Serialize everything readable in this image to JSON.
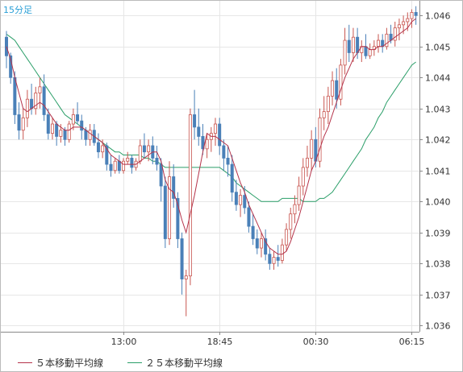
{
  "timeframe_label": "15分足",
  "legend": {
    "ma5_label": "５本移動平均線",
    "ma25_label": "２５本移動平均線"
  },
  "colors": {
    "up": "#c8554f",
    "down": "#4a80b8",
    "ma5": "#b5334a",
    "ma25": "#2a9e68",
    "grid": "#e6e6e6",
    "axis": "#888888"
  },
  "chart_data": {
    "type": "candlestick",
    "y_ticks": [
      "1.046",
      "1.045",
      "1.044",
      "1.043",
      "1.042",
      "1.041",
      "1.040",
      "1.039",
      "1.038",
      "1.037",
      "1.036"
    ],
    "y_tick_values": [
      1.046,
      1.045,
      1.044,
      1.043,
      1.042,
      1.041,
      1.04,
      1.039,
      1.038,
      1.037,
      1.036
    ],
    "ylim": [
      1.0358,
      1.0465
    ],
    "x_ticks": [
      {
        "label": "13:00",
        "index": 28
      },
      {
        "label": "18:45",
        "index": 51
      },
      {
        "label": "00:30",
        "index": 74
      },
      {
        "label": "06:15",
        "index": 97
      }
    ],
    "n_bars": 99,
    "ohlc": [
      [
        1.0453,
        1.0455,
        1.0443,
        1.0447
      ],
      [
        1.0447,
        1.0448,
        1.0438,
        1.044
      ],
      [
        1.044,
        1.0442,
        1.0425,
        1.0428
      ],
      [
        1.0428,
        1.0432,
        1.042,
        1.0423
      ],
      [
        1.0423,
        1.043,
        1.042,
        1.0427
      ],
      [
        1.0427,
        1.0436,
        1.0424,
        1.0433
      ],
      [
        1.0433,
        1.0438,
        1.0428,
        1.043
      ],
      [
        1.043,
        1.0437,
        1.0428,
        1.0435
      ],
      [
        1.0435,
        1.044,
        1.043,
        1.0437
      ],
      [
        1.0437,
        1.0441,
        1.0426,
        1.0428
      ],
      [
        1.0428,
        1.043,
        1.042,
        1.0422
      ],
      [
        1.0422,
        1.0427,
        1.042,
        1.0425
      ],
      [
        1.0425,
        1.0426,
        1.0418,
        1.0421
      ],
      [
        1.0421,
        1.0425,
        1.0419,
        1.0423
      ],
      [
        1.0423,
        1.0424,
        1.0418,
        1.042
      ],
      [
        1.042,
        1.0426,
        1.0419,
        1.0425
      ],
      [
        1.0425,
        1.043,
        1.0423,
        1.0428
      ],
      [
        1.0428,
        1.0432,
        1.0425,
        1.0426
      ],
      [
        1.0426,
        1.0428,
        1.042,
        1.0423
      ],
      [
        1.0423,
        1.0424,
        1.0418,
        1.042
      ],
      [
        1.042,
        1.0425,
        1.0418,
        1.0423
      ],
      [
        1.0423,
        1.0425,
        1.0418,
        1.0419
      ],
      [
        1.0419,
        1.0422,
        1.0414,
        1.0416
      ],
      [
        1.0416,
        1.042,
        1.0414,
        1.0418
      ],
      [
        1.0418,
        1.0419,
        1.041,
        1.0412
      ],
      [
        1.0412,
        1.0415,
        1.0408,
        1.041
      ],
      [
        1.041,
        1.0414,
        1.0409,
        1.0413
      ],
      [
        1.0413,
        1.0415,
        1.0409,
        1.041
      ],
      [
        1.041,
        1.0414,
        1.0409,
        1.0413
      ],
      [
        1.0413,
        1.0416,
        1.0412,
        1.0414
      ],
      [
        1.0414,
        1.0415,
        1.0409,
        1.0411
      ],
      [
        1.0411,
        1.0414,
        1.041,
        1.0413
      ],
      [
        1.0413,
        1.042,
        1.0412,
        1.0418
      ],
      [
        1.0418,
        1.0422,
        1.0414,
        1.0416
      ],
      [
        1.0416,
        1.042,
        1.0413,
        1.0418
      ],
      [
        1.0418,
        1.0421,
        1.0412,
        1.0414
      ],
      [
        1.0414,
        1.0418,
        1.041,
        1.0412
      ],
      [
        1.0412,
        1.0414,
        1.04,
        1.0405
      ],
      [
        1.0405,
        1.0408,
        1.0385,
        1.0388
      ],
      [
        1.0388,
        1.0413,
        1.0386,
        1.0408
      ],
      [
        1.0408,
        1.0412,
        1.0398,
        1.0401
      ],
      [
        1.0401,
        1.0403,
        1.0385,
        1.0388
      ],
      [
        1.0388,
        1.039,
        1.037,
        1.0375
      ],
      [
        1.0375,
        1.0378,
        1.0363,
        1.0376
      ],
      [
        1.0376,
        1.043,
        1.0373,
        1.0428
      ],
      [
        1.0428,
        1.0436,
        1.042,
        1.0424
      ],
      [
        1.0424,
        1.043,
        1.0418,
        1.0421
      ],
      [
        1.0421,
        1.0425,
        1.0415,
        1.0417
      ],
      [
        1.0417,
        1.0422,
        1.0414,
        1.042
      ],
      [
        1.042,
        1.0424,
        1.0416,
        1.0422
      ],
      [
        1.0422,
        1.0427,
        1.0418,
        1.0425
      ],
      [
        1.0425,
        1.0427,
        1.0415,
        1.0418
      ],
      [
        1.0418,
        1.042,
        1.041,
        1.0414
      ],
      [
        1.0414,
        1.0418,
        1.0408,
        1.0412
      ],
      [
        1.0412,
        1.0415,
        1.04,
        1.0403
      ],
      [
        1.0403,
        1.0407,
        1.0397,
        1.0399
      ],
      [
        1.0399,
        1.0404,
        1.0395,
        1.0402
      ],
      [
        1.0402,
        1.0405,
        1.0396,
        1.0398
      ],
      [
        1.0398,
        1.04,
        1.039,
        1.0392
      ],
      [
        1.0392,
        1.0396,
        1.0386,
        1.0388
      ],
      [
        1.0388,
        1.0391,
        1.0383,
        1.0385
      ],
      [
        1.0385,
        1.039,
        1.0382,
        1.0388
      ],
      [
        1.0388,
        1.0391,
        1.0381,
        1.0383
      ],
      [
        1.0383,
        1.0385,
        1.0378,
        1.038
      ],
      [
        1.038,
        1.0384,
        1.0378,
        1.0382
      ],
      [
        1.0382,
        1.0386,
        1.0379,
        1.0381
      ],
      [
        1.0381,
        1.0388,
        1.038,
        1.0386
      ],
      [
        1.0386,
        1.0393,
        1.0384,
        1.0391
      ],
      [
        1.0391,
        1.0398,
        1.0388,
        1.0396
      ],
      [
        1.0396,
        1.0402,
        1.0393,
        1.0399
      ],
      [
        1.0399,
        1.0408,
        1.0397,
        1.0405
      ],
      [
        1.0405,
        1.0414,
        1.0402,
        1.0411
      ],
      [
        1.0411,
        1.0418,
        1.0408,
        1.0414
      ],
      [
        1.0414,
        1.0423,
        1.041,
        1.042
      ],
      [
        1.042,
        1.0424,
        1.0411,
        1.0413
      ],
      [
        1.0413,
        1.043,
        1.0411,
        1.0427
      ],
      [
        1.0427,
        1.0434,
        1.0423,
        1.0429
      ],
      [
        1.0429,
        1.0437,
        1.0425,
        1.0434
      ],
      [
        1.0434,
        1.0442,
        1.0431,
        1.0439
      ],
      [
        1.0439,
        1.0443,
        1.043,
        1.0433
      ],
      [
        1.0433,
        1.0446,
        1.0431,
        1.0444
      ],
      [
        1.0444,
        1.0456,
        1.0441,
        1.0452
      ],
      [
        1.0452,
        1.0457,
        1.0445,
        1.0448
      ],
      [
        1.0448,
        1.0456,
        1.0445,
        1.0453
      ],
      [
        1.0453,
        1.0456,
        1.0446,
        1.0448
      ],
      [
        1.0448,
        1.0452,
        1.0445,
        1.045
      ],
      [
        1.045,
        1.0454,
        1.0446,
        1.0447
      ],
      [
        1.0447,
        1.0451,
        1.0446,
        1.0449
      ],
      [
        1.0449,
        1.0452,
        1.0447,
        1.045
      ],
      [
        1.045,
        1.0454,
        1.0448,
        1.0452
      ],
      [
        1.0452,
        1.0454,
        1.0448,
        1.045
      ],
      [
        1.045,
        1.0456,
        1.0449,
        1.0454
      ],
      [
        1.0454,
        1.0457,
        1.0451,
        1.0452
      ],
      [
        1.0452,
        1.0458,
        1.045,
        1.0456
      ],
      [
        1.0456,
        1.0459,
        1.0452,
        1.0457
      ],
      [
        1.0457,
        1.046,
        1.0454,
        1.0458
      ],
      [
        1.0458,
        1.0461,
        1.0455,
        1.0459
      ],
      [
        1.0459,
        1.0462,
        1.0456,
        1.0461
      ],
      [
        1.0461,
        1.0463,
        1.0457,
        1.046
      ]
    ],
    "ma5": [
      1.045,
      1.0446,
      1.044,
      1.0435,
      1.043,
      1.0429,
      1.043,
      1.0431,
      1.0432,
      1.0431,
      1.0429,
      1.0427,
      1.0425,
      1.0424,
      1.0423,
      1.0423,
      1.0424,
      1.0424,
      1.0424,
      1.0423,
      1.0422,
      1.0421,
      1.042,
      1.0419,
      1.0417,
      1.0415,
      1.0414,
      1.0413,
      1.0412,
      1.0412,
      1.0412,
      1.0412,
      1.0413,
      1.0414,
      1.0415,
      1.0416,
      1.0416,
      1.0413,
      1.0407,
      1.0404,
      1.0403,
      1.0399,
      1.0394,
      1.039,
      1.0396,
      1.0402,
      1.0409,
      1.0416,
      1.0422,
      1.0421,
      1.0421,
      1.042,
      1.0419,
      1.0418,
      1.0414,
      1.041,
      1.0406,
      1.0403,
      1.0399,
      1.0396,
      1.0393,
      1.039,
      1.0387,
      1.0385,
      1.0384,
      1.0383,
      1.0383,
      1.0384,
      1.0387,
      1.0391,
      1.0395,
      1.04,
      1.0405,
      1.041,
      1.0413,
      1.0417,
      1.0421,
      1.0424,
      1.0428,
      1.0432,
      1.0436,
      1.044,
      1.0443,
      1.0446,
      1.0448,
      1.045,
      1.045,
      1.0449,
      1.0449,
      1.045,
      1.045,
      1.0451,
      1.0452,
      1.0453,
      1.0454,
      1.0455,
      1.0456,
      1.0458,
      1.0459
    ],
    "ma25": [
      1.0454,
      1.0453,
      1.0452,
      1.045,
      1.0448,
      1.0446,
      1.0444,
      1.0442,
      1.044,
      1.0438,
      1.0436,
      1.0434,
      1.0432,
      1.043,
      1.0428,
      1.0427,
      1.0426,
      1.0425,
      1.0424,
      1.0423,
      1.0422,
      1.0421,
      1.042,
      1.0419,
      1.0418,
      1.0417,
      1.0416,
      1.0416,
      1.0415,
      1.0415,
      1.0415,
      1.0415,
      1.0415,
      1.0414,
      1.0414,
      1.0413,
      1.0413,
      1.0412,
      1.0411,
      1.0411,
      1.0411,
      1.0411,
      1.0411,
      1.0411,
      1.0411,
      1.0411,
      1.0411,
      1.0411,
      1.0411,
      1.0411,
      1.0411,
      1.0411,
      1.041,
      1.0409,
      1.0408,
      1.0406,
      1.0405,
      1.0404,
      1.0403,
      1.0402,
      1.0401,
      1.04,
      1.04,
      1.04,
      1.04,
      1.04,
      1.0401,
      1.0401,
      1.0401,
      1.0401,
      1.0401,
      1.04,
      1.04,
      1.04,
      1.04,
      1.0401,
      1.0401,
      1.0402,
      1.0403,
      1.0405,
      1.0407,
      1.0409,
      1.0411,
      1.0413,
      1.0415,
      1.0417,
      1.042,
      1.0422,
      1.0424,
      1.0427,
      1.0429,
      1.0432,
      1.0434,
      1.0436,
      1.0438,
      1.044,
      1.0442,
      1.0444,
      1.0445
    ]
  }
}
